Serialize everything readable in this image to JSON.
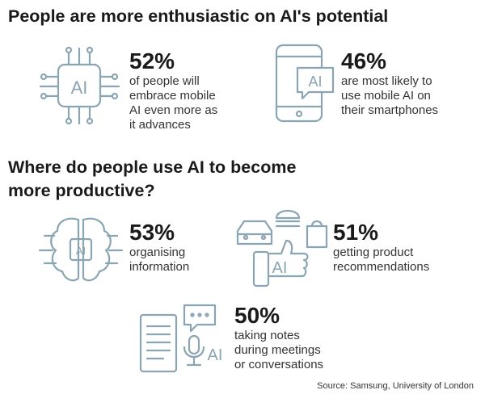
{
  "sections": [
    {
      "title": "People are more enthusiastic on AI's potential",
      "items": [
        {
          "stat": "52%",
          "description": [
            "of people will",
            "embrace mobile",
            "AI even more as",
            "it advances"
          ]
        },
        {
          "stat": "46%",
          "description": [
            "are most likely to",
            "use mobile AI on",
            "their smartphones"
          ]
        }
      ]
    },
    {
      "title": [
        "Where do people use AI to become",
        "more productive?"
      ],
      "items": [
        {
          "stat": "53%",
          "description": [
            "organising",
            "information"
          ]
        },
        {
          "stat": "51%",
          "description": [
            "getting product",
            "recommendations"
          ]
        },
        {
          "stat": "50%",
          "description": [
            "taking notes",
            "during meetings",
            "or conversations"
          ]
        }
      ]
    }
  ],
  "source": "Source: Samsung, University of London"
}
